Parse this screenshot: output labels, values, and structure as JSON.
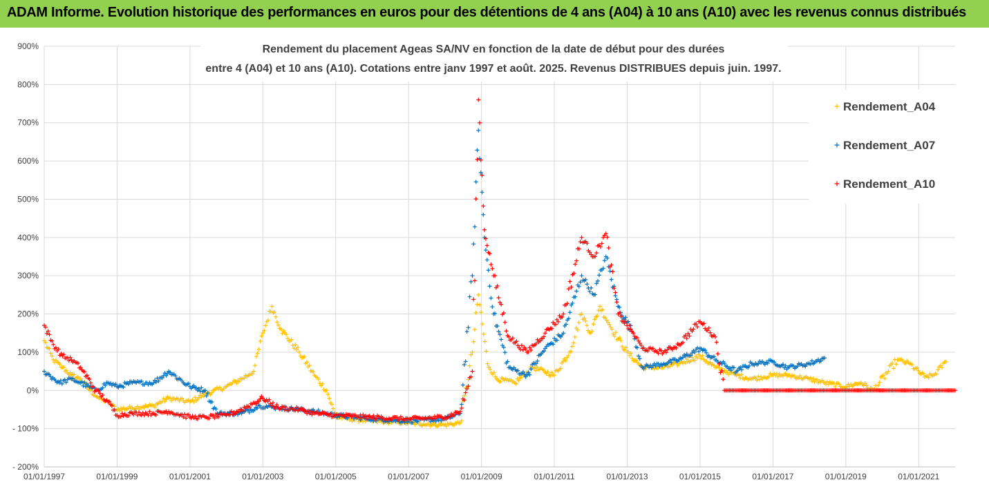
{
  "header": {
    "title": "ADAM Informe. Evolution historique des performances en euros pour des détentions de 4 ans (A04) à 10 ans (A10) avec les revenus connus distribués",
    "background": "#92d050"
  },
  "chart_data": {
    "type": "scatter",
    "title_line1": "Rendement du placement Ageas SA/NV en fonction de la date de début pour des durées",
    "title_line2": "entre 4 (A04) et 10 ans (A10). Cotations entre janv 1997 et août. 2025. Revenus DISTRIBUES depuis juin. 1997.",
    "x_range": [
      "1997-01-01",
      "2022-01-01"
    ],
    "ylim": [
      -200,
      900
    ],
    "y_ticks": [
      "900%",
      "800%",
      "700%",
      "600%",
      "500%",
      "400%",
      "300%",
      "200%",
      "100%",
      "0%",
      "- 100%",
      "- 200%"
    ],
    "y_tick_values": [
      900,
      800,
      700,
      600,
      500,
      400,
      300,
      200,
      100,
      0,
      -100,
      -200
    ],
    "x_ticks": [
      "01/01/1997",
      "01/01/1999",
      "01/01/2001",
      "01/01/2003",
      "01/01/2005",
      "01/01/2007",
      "01/01/2009",
      "01/01/2011",
      "01/01/2013",
      "01/01/2015",
      "01/01/2017",
      "01/01/2019",
      "01/01/2021"
    ],
    "x_tick_years": [
      1997,
      1999,
      2001,
      2003,
      2005,
      2007,
      2009,
      2011,
      2013,
      2015,
      2017,
      2019,
      2021
    ],
    "grid": true,
    "legend_position": "top-right",
    "series": [
      {
        "name": "Rendement_A04",
        "color": "#ffc000",
        "points": [
          [
            "1997-01-01",
            130
          ],
          [
            "1997-04-01",
            80
          ],
          [
            "1997-07-01",
            60
          ],
          [
            "1997-10-01",
            40
          ],
          [
            "1998-01-01",
            30
          ],
          [
            "1998-04-01",
            0
          ],
          [
            "1998-07-01",
            -20
          ],
          [
            "1998-10-01",
            -30
          ],
          [
            "1999-01-01",
            -50
          ],
          [
            "1999-06-01",
            -45
          ],
          [
            "2000-01-01",
            -40
          ],
          [
            "2000-06-01",
            -20
          ],
          [
            "2001-01-01",
            -30
          ],
          [
            "2001-06-01",
            -10
          ],
          [
            "2002-01-01",
            10
          ],
          [
            "2002-06-01",
            30
          ],
          [
            "2002-10-01",
            50
          ],
          [
            "2003-01-01",
            150
          ],
          [
            "2003-04-01",
            220
          ],
          [
            "2003-07-01",
            160
          ],
          [
            "2004-01-01",
            100
          ],
          [
            "2004-06-01",
            40
          ],
          [
            "2004-10-01",
            0
          ],
          [
            "2005-01-01",
            -70
          ],
          [
            "2005-06-01",
            -75
          ],
          [
            "2006-01-01",
            -80
          ],
          [
            "2006-06-01",
            -82
          ],
          [
            "2007-01-01",
            -85
          ],
          [
            "2007-06-01",
            -88
          ],
          [
            "2008-01-01",
            -90
          ],
          [
            "2008-06-01",
            -85
          ],
          [
            "2008-10-01",
            100
          ],
          [
            "2008-12-01",
            250
          ],
          [
            "2009-03-01",
            70
          ],
          [
            "2009-06-01",
            30
          ],
          [
            "2009-12-01",
            20
          ],
          [
            "2010-06-01",
            60
          ],
          [
            "2011-01-01",
            40
          ],
          [
            "2011-06-01",
            100
          ],
          [
            "2011-10-01",
            200
          ],
          [
            "2012-01-01",
            150
          ],
          [
            "2012-04-01",
            220
          ],
          [
            "2012-08-01",
            160
          ],
          [
            "2013-01-01",
            100
          ],
          [
            "2013-06-01",
            60
          ],
          [
            "2014-01-01",
            60
          ],
          [
            "2014-06-01",
            70
          ],
          [
            "2015-01-01",
            90
          ],
          [
            "2015-06-01",
            60
          ],
          [
            "2016-01-01",
            40
          ],
          [
            "2016-06-01",
            30
          ],
          [
            "2017-01-01",
            40
          ],
          [
            "2017-06-01",
            40
          ],
          [
            "2018-01-01",
            30
          ],
          [
            "2018-06-01",
            20
          ],
          [
            "2019-01-01",
            10
          ],
          [
            "2019-06-01",
            20
          ],
          [
            "2019-10-01",
            0
          ],
          [
            "2020-06-01",
            80
          ],
          [
            "2020-10-01",
            70
          ],
          [
            "2021-03-01",
            35
          ],
          [
            "2021-06-01",
            40
          ],
          [
            "2021-10-01",
            75
          ]
        ]
      },
      {
        "name": "Rendement_A07",
        "color": "#0070c0",
        "points": [
          [
            "1997-01-01",
            50
          ],
          [
            "1997-06-01",
            20
          ],
          [
            "1997-10-01",
            30
          ],
          [
            "1998-01-01",
            20
          ],
          [
            "1998-06-01",
            0
          ],
          [
            "1998-10-01",
            20
          ],
          [
            "1999-01-01",
            10
          ],
          [
            "1999-06-01",
            20
          ],
          [
            "2000-01-01",
            20
          ],
          [
            "2000-06-01",
            50
          ],
          [
            "2001-01-01",
            10
          ],
          [
            "2001-06-01",
            0
          ],
          [
            "2001-10-01",
            -60
          ],
          [
            "2002-06-01",
            -60
          ],
          [
            "2002-12-01",
            -40
          ],
          [
            "2003-06-01",
            -45
          ],
          [
            "2004-01-01",
            -50
          ],
          [
            "2004-06-01",
            -55
          ],
          [
            "2005-01-01",
            -65
          ],
          [
            "2006-01-01",
            -75
          ],
          [
            "2007-01-01",
            -80
          ],
          [
            "2008-01-01",
            -75
          ],
          [
            "2008-06-01",
            -60
          ],
          [
            "2008-10-01",
            300
          ],
          [
            "2008-12-01",
            680
          ],
          [
            "2009-02-01",
            400
          ],
          [
            "2009-05-01",
            200
          ],
          [
            "2009-10-01",
            60
          ],
          [
            "2010-04-01",
            40
          ],
          [
            "2010-10-01",
            110
          ],
          [
            "2011-04-01",
            150
          ],
          [
            "2011-10-01",
            300
          ],
          [
            "2012-02-01",
            250
          ],
          [
            "2012-06-01",
            350
          ],
          [
            "2012-10-01",
            220
          ],
          [
            "2013-03-01",
            150
          ],
          [
            "2013-06-01",
            60
          ],
          [
            "2014-01-01",
            70
          ],
          [
            "2014-06-01",
            80
          ],
          [
            "2015-01-01",
            110
          ],
          [
            "2015-06-01",
            80
          ],
          [
            "2016-01-01",
            50
          ],
          [
            "2016-06-01",
            70
          ],
          [
            "2017-01-01",
            75
          ],
          [
            "2017-06-01",
            60
          ],
          [
            "2018-01-01",
            70
          ],
          [
            "2018-06-01",
            85
          ]
        ]
      },
      {
        "name": "Rendement_A10",
        "color": "#ff0000",
        "points": [
          [
            "1997-01-01",
            170
          ],
          [
            "1997-04-01",
            120
          ],
          [
            "1997-07-01",
            90
          ],
          [
            "1997-10-01",
            80
          ],
          [
            "1998-01-01",
            60
          ],
          [
            "1998-06-01",
            0
          ],
          [
            "1998-10-01",
            -30
          ],
          [
            "1999-01-01",
            -65
          ],
          [
            "1999-06-01",
            -60
          ],
          [
            "2000-01-01",
            -60
          ],
          [
            "2000-06-01",
            -55
          ],
          [
            "2001-01-01",
            -70
          ],
          [
            "2001-06-01",
            -70
          ],
          [
            "2002-01-01",
            -65
          ],
          [
            "2002-06-01",
            -50
          ],
          [
            "2003-01-01",
            -20
          ],
          [
            "2003-06-01",
            -45
          ],
          [
            "2004-01-01",
            -50
          ],
          [
            "2004-06-01",
            -60
          ],
          [
            "2005-01-01",
            -65
          ],
          [
            "2006-01-01",
            -70
          ],
          [
            "2007-01-01",
            -75
          ],
          [
            "2008-01-01",
            -70
          ],
          [
            "2008-06-01",
            -55
          ],
          [
            "2008-10-01",
            50
          ],
          [
            "2008-12-01",
            760
          ],
          [
            "2009-02-01",
            420
          ],
          [
            "2009-05-01",
            300
          ],
          [
            "2009-10-01",
            140
          ],
          [
            "2010-04-01",
            100
          ],
          [
            "2010-10-01",
            150
          ],
          [
            "2011-04-01",
            200
          ],
          [
            "2011-10-01",
            400
          ],
          [
            "2012-02-01",
            350
          ],
          [
            "2012-06-01",
            410
          ],
          [
            "2012-10-01",
            200
          ],
          [
            "2013-03-01",
            150
          ],
          [
            "2013-06-01",
            110
          ],
          [
            "2014-01-01",
            100
          ],
          [
            "2014-06-01",
            120
          ],
          [
            "2015-01-01",
            180
          ],
          [
            "2015-06-01",
            140
          ],
          [
            "2015-09-01",
            0
          ],
          [
            "2022-01-01",
            0
          ]
        ]
      }
    ]
  }
}
